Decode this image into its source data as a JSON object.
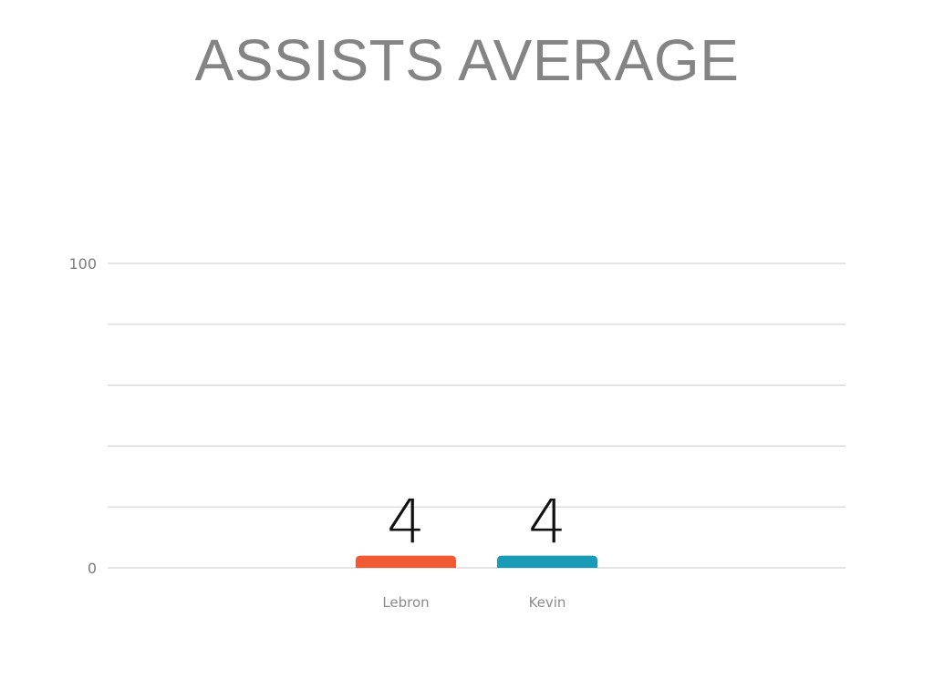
{
  "chart_data": {
    "type": "bar",
    "title": "ASSISTS AVERAGE",
    "categories": [
      "Lebron",
      "Kevin"
    ],
    "values": [
      4,
      4
    ],
    "data_labels": [
      "4",
      "4"
    ],
    "ylim": [
      0,
      100
    ],
    "y_ticks": [
      0,
      100
    ],
    "y_tick_labels": [
      "0",
      "100"
    ],
    "gridlines": [
      0,
      20,
      40,
      60,
      80,
      100
    ],
    "grid": true,
    "xlabel": "",
    "ylabel": "",
    "colors": [
      "#f05a35",
      "#1a9bb8"
    ]
  }
}
